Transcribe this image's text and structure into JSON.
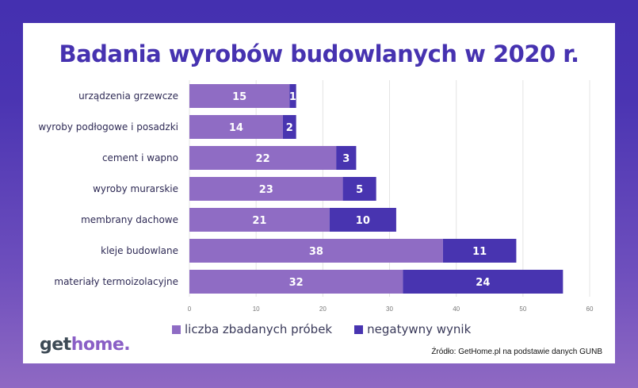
{
  "chart_data": {
    "type": "bar",
    "orientation": "horizontal",
    "stacked": true,
    "title": "Badania wyrobów budowlanych w 2020 r.",
    "categories": [
      "urządzenia grzewcze",
      "wyroby podłogowe i posadzki",
      "cement i wapno",
      "wyroby murarskie",
      "membrany dachowe",
      "kleje budowlane",
      "materiały termoizolacyjne"
    ],
    "series": [
      {
        "name": "liczba zbadanych próbek",
        "color": "#8f6cc4",
        "values": [
          15,
          14,
          22,
          23,
          21,
          38,
          32
        ]
      },
      {
        "name": "negatywny wynik",
        "color": "#4834b0",
        "values": [
          1,
          2,
          3,
          5,
          10,
          11,
          24
        ]
      }
    ],
    "xlim": [
      0,
      60
    ],
    "xticks": [
      "0",
      "10",
      "20",
      "30",
      "40",
      "50",
      "60"
    ],
    "grid": true,
    "legend_position": "bottom"
  },
  "logo": {
    "part1": "get",
    "part2": "home."
  },
  "source": "Źródło: GetHome.pl na podstawie danych GUNB"
}
